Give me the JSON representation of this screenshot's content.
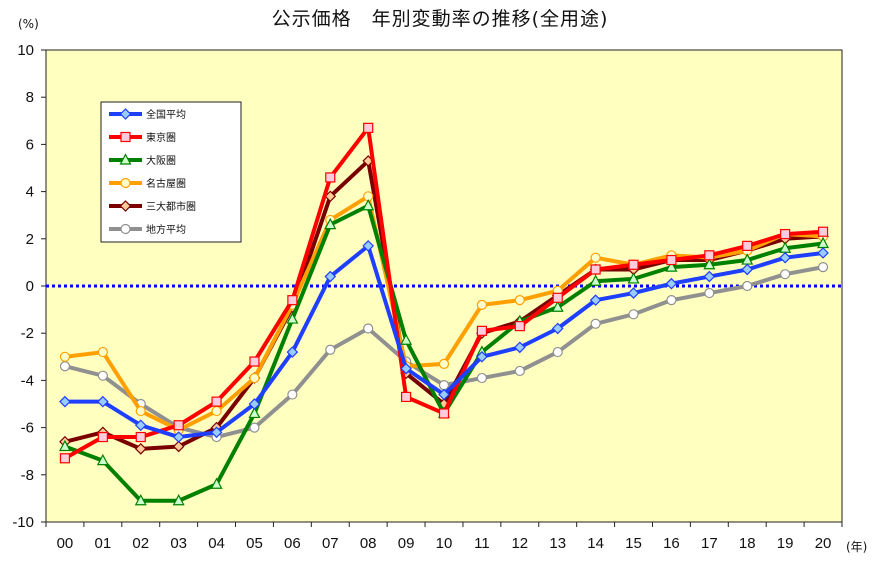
{
  "chart_data": {
    "type": "line",
    "title": "公示価格　年別変動率の推移(全用途)",
    "y_unit": "(%)",
    "x_unit": "(年)",
    "categories": [
      "00",
      "01",
      "02",
      "03",
      "04",
      "05",
      "06",
      "07",
      "08",
      "09",
      "10",
      "11",
      "12",
      "13",
      "14",
      "15",
      "16",
      "17",
      "18",
      "19",
      "20"
    ],
    "ylim": [
      -10,
      10
    ],
    "yticks": [
      10,
      8,
      6,
      4,
      2,
      0,
      -2,
      -4,
      -6,
      -8,
      -10
    ],
    "grid": false,
    "zero_line": {
      "value": 0,
      "color": "#0000ff",
      "style": "dotted"
    },
    "plot_background": "#ffffc0",
    "legend_position": "upper-left inside",
    "series": [
      {
        "name": "全国平均",
        "color": "#1f3fff",
        "marker": "diamond",
        "marker_fill": "#99ccff",
        "values": [
          -4.9,
          -4.9,
          -5.9,
          -6.4,
          -6.2,
          -5.0,
          -2.8,
          0.4,
          1.7,
          -3.5,
          -4.6,
          -3.0,
          -2.6,
          -1.8,
          -0.6,
          -0.3,
          0.1,
          0.4,
          0.7,
          1.2,
          1.4
        ]
      },
      {
        "name": "東京圏",
        "color": "#ff0000",
        "marker": "square",
        "marker_fill": "#ffccdd",
        "values": [
          -7.3,
          -6.4,
          -6.4,
          -5.9,
          -4.9,
          -3.2,
          -0.6,
          4.6,
          6.7,
          -4.7,
          -5.4,
          -1.9,
          -1.7,
          -0.5,
          0.7,
          0.9,
          1.1,
          1.3,
          1.7,
          2.2,
          2.3
        ]
      },
      {
        "name": "大阪圏",
        "color": "#008000",
        "marker": "triangle",
        "marker_fill": "#ccffcc",
        "values": [
          -6.8,
          -7.4,
          -9.1,
          -9.1,
          -8.4,
          -5.4,
          -1.4,
          2.6,
          3.4,
          -2.3,
          -5.4,
          -2.8,
          -1.5,
          -0.9,
          0.2,
          0.3,
          0.8,
          0.9,
          1.1,
          1.6,
          1.8
        ]
      },
      {
        "name": "名古屋圏",
        "color": "#ffa000",
        "marker": "circle",
        "marker_fill": "#ffffcc",
        "values": [
          -3.0,
          -2.8,
          -5.3,
          -6.1,
          -5.3,
          -3.9,
          -0.8,
          2.8,
          3.8,
          -3.4,
          -3.3,
          -0.8,
          -0.6,
          -0.2,
          1.2,
          0.9,
          1.3,
          1.2,
          1.5,
          2.2,
          2.1
        ]
      },
      {
        "name": "三大都市圏",
        "color": "#7a0000",
        "marker": "diamond",
        "marker_fill": "#ffcc99",
        "values": [
          -6.6,
          -6.2,
          -6.9,
          -6.8,
          -6.0,
          -3.9,
          -0.9,
          3.8,
          5.3,
          -3.7,
          -5.0,
          -2.0,
          -1.5,
          -0.4,
          0.7,
          0.7,
          1.1,
          1.1,
          1.5,
          2.0,
          2.1
        ]
      },
      {
        "name": "地方平均",
        "color": "#909090",
        "marker": "circle",
        "marker_fill": "#ffffff",
        "values": [
          -3.4,
          -3.8,
          -5.0,
          -6.0,
          -6.4,
          -6.0,
          -4.6,
          -2.7,
          -1.8,
          -3.2,
          -4.2,
          -3.9,
          -3.6,
          -2.8,
          -1.6,
          -1.2,
          -0.6,
          -0.3,
          0.0,
          0.5,
          0.8
        ]
      }
    ]
  }
}
